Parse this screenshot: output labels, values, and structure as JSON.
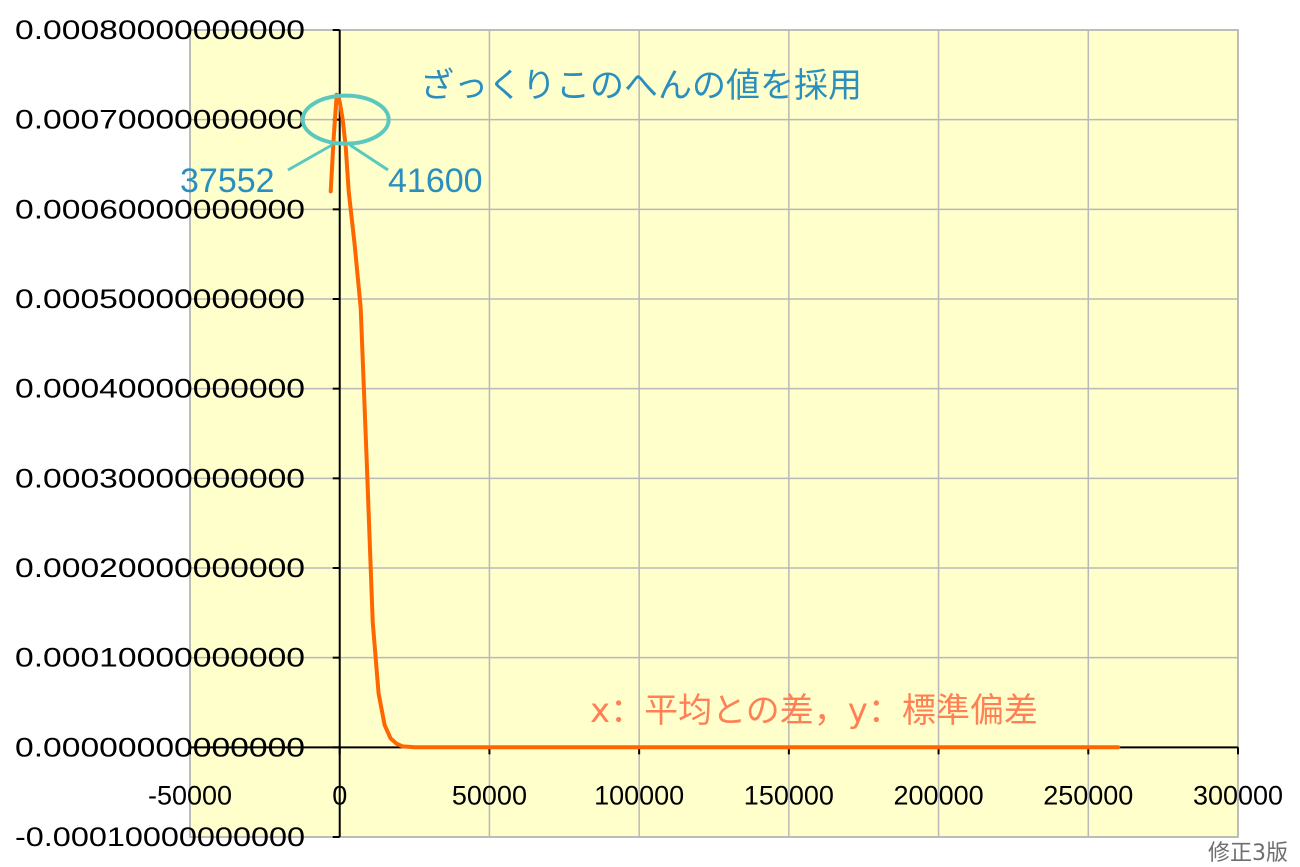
{
  "chart_data": {
    "type": "line",
    "title": "",
    "xlabel": "",
    "ylabel": "",
    "xlim": [
      -50000,
      300000
    ],
    "ylim": [
      -0.0001,
      0.0008
    ],
    "x_ticks": [
      -50000,
      0,
      50000,
      100000,
      150000,
      200000,
      250000,
      300000
    ],
    "x_tick_labels": [
      "-50000",
      "0",
      "50000",
      "100000",
      "150000",
      "200000",
      "250000",
      "300000"
    ],
    "y_ticks": [
      -0.0001,
      0,
      0.0001,
      0.0002,
      0.0003,
      0.0004,
      0.0005,
      0.0006,
      0.0007,
      0.0008
    ],
    "y_tick_labels": [
      "-0.00010000000000",
      "0.00000000000000",
      "0.00010000000000",
      "0.00020000000000",
      "0.00030000000000",
      "0.00040000000000",
      "0.00050000000000",
      "0.00060000000000",
      "0.00070000000000",
      "0.00080000000000"
    ],
    "grid": true,
    "plot_background": "#ffffcc",
    "series": [
      {
        "color": "#ff6600",
        "x": [
          -3000,
          -2000,
          -1000,
          0,
          1000,
          2000,
          3000,
          5000,
          7000,
          9000,
          11000,
          13000,
          15000,
          17000,
          19000,
          21000,
          25000,
          50000,
          100000,
          150000,
          200000,
          260000
        ],
        "y": [
          0.00062,
          0.00068,
          0.000728,
          0.00072,
          0.0007,
          0.00067,
          0.00062,
          0.00056,
          0.00049,
          0.00032,
          0.00014,
          6e-05,
          2.5e-05,
          1e-05,
          4e-06,
          1e-06,
          2e-07,
          0,
          0,
          0,
          0,
          0
        ]
      }
    ],
    "annotations": {
      "peak_note": "ざっくりこのへんの値を採用",
      "left_value": "37552",
      "right_value": "41600",
      "axes_note": "x：平均との差，y：標準偏差",
      "highlight_color": "#5bc8c0"
    }
  },
  "footer": {
    "stamp": "修正3版"
  }
}
